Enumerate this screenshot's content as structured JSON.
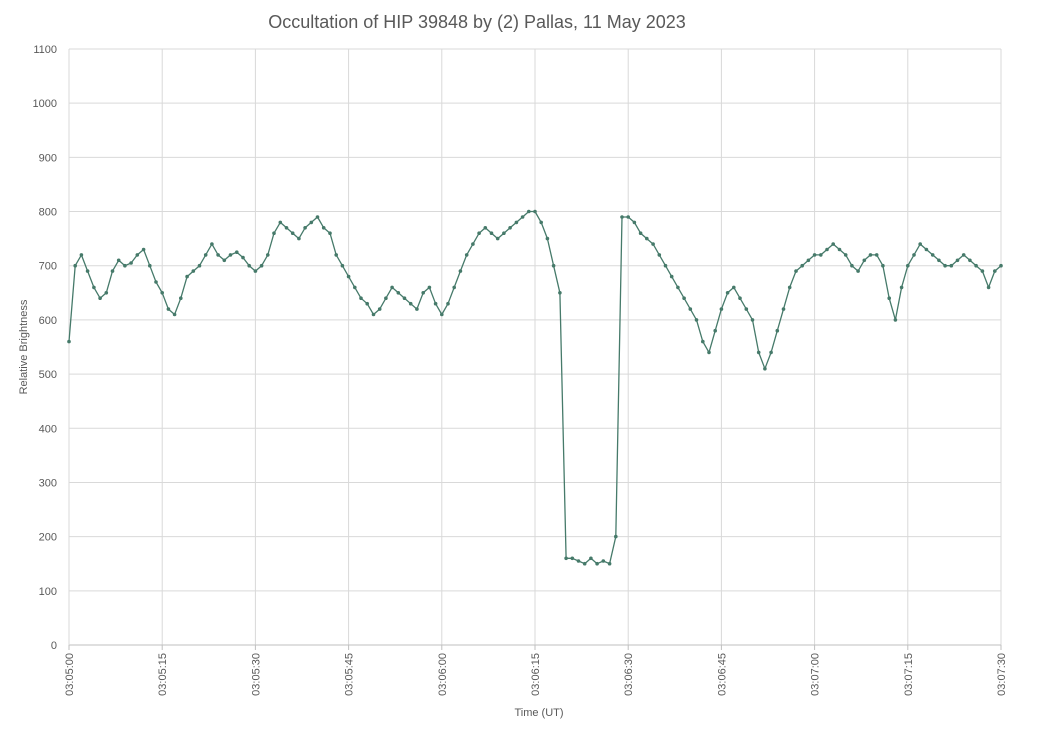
{
  "chart_data": {
    "type": "line",
    "title": "Occultation of HIP 39848 by (2) Pallas, 11 May 2023",
    "xlabel": "Time (UT)",
    "ylabel": "Relative Brightness",
    "xlim": [
      "03:05:00",
      "03:07:30"
    ],
    "ylim": [
      0,
      1100
    ],
    "y_ticks": [
      "0",
      "100",
      "200",
      "300",
      "400",
      "500",
      "600",
      "700",
      "800",
      "900",
      "1000",
      "1100"
    ],
    "x_ticks": [
      "03:05:00",
      "03:05:15",
      "03:05:30",
      "03:05:45",
      "03:06:00",
      "03:06:15",
      "03:06:30",
      "03:06:45",
      "03:07:00",
      "03:07:15",
      "03:07:30"
    ],
    "grid": true,
    "legend": "none",
    "markers": true,
    "series_color": "#467A6A",
    "series": [
      {
        "x": [
          "03:05:00",
          "03:05:01",
          "03:05:02",
          "03:05:03",
          "03:05:04",
          "03:05:05",
          "03:05:06",
          "03:05:07",
          "03:05:08",
          "03:05:09",
          "03:05:10",
          "03:05:11",
          "03:05:12",
          "03:05:13",
          "03:05:14",
          "03:05:15",
          "03:05:16",
          "03:05:17",
          "03:05:18",
          "03:05:19",
          "03:05:20",
          "03:05:21",
          "03:05:22",
          "03:05:23",
          "03:05:24",
          "03:05:25",
          "03:05:26",
          "03:05:27",
          "03:05:28",
          "03:05:29",
          "03:05:30",
          "03:05:31",
          "03:05:32",
          "03:05:33",
          "03:05:34",
          "03:05:35",
          "03:05:36",
          "03:05:37",
          "03:05:38",
          "03:05:39",
          "03:05:40",
          "03:05:41",
          "03:05:42",
          "03:05:43",
          "03:05:44",
          "03:05:45",
          "03:05:46",
          "03:05:47",
          "03:05:48",
          "03:05:49",
          "03:05:50",
          "03:05:51",
          "03:05:52",
          "03:05:53",
          "03:05:54",
          "03:05:55",
          "03:05:56",
          "03:05:57",
          "03:05:58",
          "03:05:59",
          "03:06:00",
          "03:06:01",
          "03:06:02",
          "03:06:03",
          "03:06:04",
          "03:06:05",
          "03:06:06",
          "03:06:07",
          "03:06:08",
          "03:06:09",
          "03:06:10",
          "03:06:11",
          "03:06:12",
          "03:06:13",
          "03:06:14",
          "03:06:15",
          "03:06:16",
          "03:06:17",
          "03:06:18",
          "03:06:19",
          "03:06:20",
          "03:06:21",
          "03:06:22",
          "03:06:23",
          "03:06:24",
          "03:06:25",
          "03:06:26",
          "03:06:27",
          "03:06:28",
          "03:06:29",
          "03:06:30",
          "03:06:31",
          "03:06:32",
          "03:06:33",
          "03:06:34",
          "03:06:35",
          "03:06:36",
          "03:06:37",
          "03:06:38",
          "03:06:39",
          "03:06:40",
          "03:06:41",
          "03:06:42",
          "03:06:43",
          "03:06:44",
          "03:06:45",
          "03:06:46",
          "03:06:47",
          "03:06:48",
          "03:06:49",
          "03:06:50",
          "03:06:51",
          "03:06:52",
          "03:06:53",
          "03:06:54",
          "03:06:55",
          "03:06:56",
          "03:06:57",
          "03:06:58",
          "03:06:59",
          "03:07:00",
          "03:07:01",
          "03:07:02",
          "03:07:03",
          "03:07:04",
          "03:07:05",
          "03:07:06",
          "03:07:07",
          "03:07:08",
          "03:07:09",
          "03:07:10",
          "03:07:11",
          "03:07:12",
          "03:07:13",
          "03:07:14",
          "03:07:15",
          "03:07:16",
          "03:07:17",
          "03:07:18",
          "03:07:19",
          "03:07:20",
          "03:07:21",
          "03:07:22",
          "03:07:23",
          "03:07:24",
          "03:07:25",
          "03:07:26",
          "03:07:27",
          "03:07:28",
          "03:07:29",
          "03:07:30"
        ],
        "y": [
          560,
          700,
          720,
          690,
          660,
          640,
          650,
          690,
          710,
          700,
          705,
          720,
          730,
          700,
          670,
          650,
          620,
          610,
          640,
          680,
          690,
          700,
          720,
          740,
          720,
          710,
          720,
          725,
          715,
          700,
          690,
          700,
          720,
          760,
          780,
          770,
          760,
          750,
          770,
          780,
          790,
          770,
          760,
          720,
          700,
          680,
          660,
          640,
          630,
          610,
          620,
          640,
          660,
          650,
          640,
          630,
          620,
          650,
          660,
          630,
          610,
          630,
          660,
          690,
          720,
          740,
          760,
          770,
          760,
          750,
          760,
          770,
          780,
          790,
          800,
          800,
          780,
          750,
          700,
          650,
          160,
          160,
          155,
          150,
          160,
          150,
          155,
          150,
          200,
          790,
          790,
          780,
          760,
          750,
          740,
          720,
          700,
          680,
          660,
          640,
          620,
          600,
          560,
          540,
          580,
          620,
          650,
          660,
          640,
          620,
          600,
          540,
          510,
          540,
          580,
          620,
          660,
          690,
          700,
          710,
          720,
          720,
          730,
          740,
          730,
          720,
          700,
          690,
          710,
          720,
          720,
          700,
          640,
          600,
          660,
          700,
          720,
          740,
          730,
          720,
          710,
          700,
          700,
          710,
          720,
          710,
          700,
          690,
          660,
          690,
          700
        ]
      }
    ]
  }
}
